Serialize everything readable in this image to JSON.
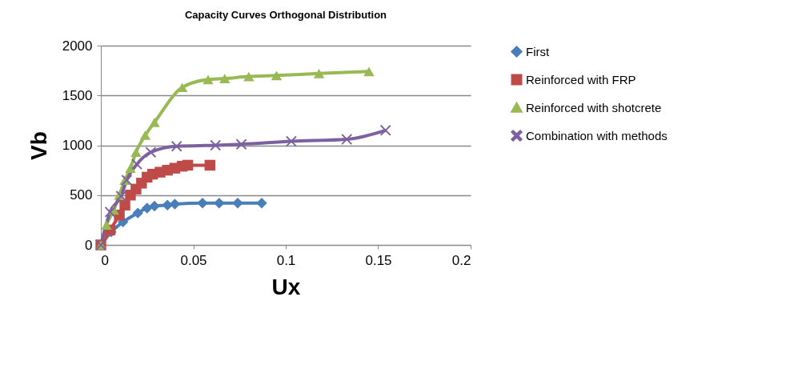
{
  "chart_data": {
    "type": "line",
    "title": "Capacity Curves Orthogonal Distribution",
    "xlabel": "Ux",
    "ylabel": "Vb",
    "xlim": [
      0,
      0.2
    ],
    "xticks": [
      0,
      0.05,
      0.1,
      0.15,
      0.2
    ],
    "ylim": [
      0,
      2000
    ],
    "yticks": [
      0,
      500,
      1000,
      1500,
      2000
    ],
    "grid": "y",
    "legend": "right",
    "series": [
      {
        "name": "First",
        "color": "#4a7ebb",
        "marker": "diamond",
        "x": [
          0,
          0.0056,
          0.012,
          0.02,
          0.025,
          0.029,
          0.036,
          0.04,
          0.055,
          0.064,
          0.074,
          0.087
        ],
        "values": [
          0,
          130,
          230,
          320,
          370,
          390,
          400,
          410,
          420,
          420,
          420,
          420
        ]
      },
      {
        "name": "Reinforced with FRP",
        "color": "#be4b48",
        "marker": "square",
        "x": [
          0,
          0.005,
          0.01,
          0.013,
          0.016,
          0.019,
          0.022,
          0.025,
          0.028,
          0.032,
          0.036,
          0.04,
          0.044,
          0.047,
          0.059
        ],
        "values": [
          0,
          150,
          300,
          400,
          500,
          560,
          620,
          680,
          710,
          730,
          750,
          770,
          790,
          800,
          800
        ]
      },
      {
        "name": "Reinforced with shotcrete",
        "color": "#98b954",
        "marker": "triangle",
        "x": [
          0,
          0.003,
          0.007,
          0.01,
          0.013,
          0.016,
          0.019,
          0.024,
          0.029,
          0.044,
          0.058,
          0.067,
          0.08,
          0.095,
          0.118,
          0.145
        ],
        "values": [
          0,
          200,
          350,
          500,
          650,
          770,
          930,
          1100,
          1230,
          1580,
          1660,
          1670,
          1690,
          1700,
          1720,
          1740
        ]
      },
      {
        "name": "Combination with methods",
        "color": "#7d60a0",
        "marker": "cross",
        "x": [
          0,
          0.005,
          0.011,
          0.014,
          0.0195,
          0.027,
          0.041,
          0.062,
          0.076,
          0.103,
          0.133,
          0.154
        ],
        "values": [
          0,
          330,
          490,
          650,
          810,
          930,
          990,
          1000,
          1010,
          1040,
          1060,
          1150
        ]
      }
    ]
  }
}
